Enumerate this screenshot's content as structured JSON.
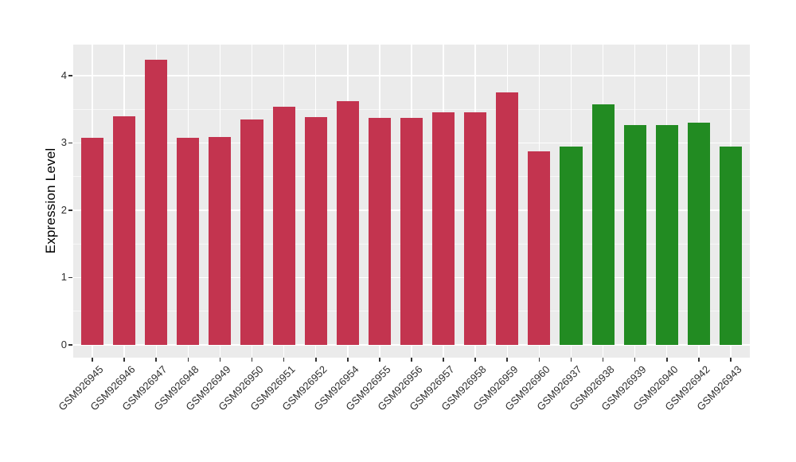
{
  "chart_data": {
    "type": "bar",
    "title": "",
    "xlabel": "",
    "ylabel": "Expression Level",
    "ylim": [
      -0.19,
      4.46
    ],
    "yticks": [
      0,
      1,
      2,
      3,
      4
    ],
    "yminor": [
      0.5,
      1.5,
      2.5,
      3.5
    ],
    "grid": "white major+minor horizontal lines and white vertical lines at each category, on gray panel",
    "legend_position": "none",
    "panel_color": "#EBEBEB",
    "tick_color": "#333333",
    "axis_text_color": "#2e2e2e",
    "groups": {
      "group1": "#C3344F",
      "group2": "#228B22"
    },
    "bars": [
      {
        "label": "GSM926945",
        "value": 3.07,
        "group": "group1"
      },
      {
        "label": "GSM926946",
        "value": 3.4,
        "group": "group1"
      },
      {
        "label": "GSM926947",
        "value": 4.23,
        "group": "group1"
      },
      {
        "label": "GSM926948",
        "value": 3.07,
        "group": "group1"
      },
      {
        "label": "GSM926949",
        "value": 3.09,
        "group": "group1"
      },
      {
        "label": "GSM926950",
        "value": 3.35,
        "group": "group1"
      },
      {
        "label": "GSM926951",
        "value": 3.54,
        "group": "group1"
      },
      {
        "label": "GSM926952",
        "value": 3.38,
        "group": "group1"
      },
      {
        "label": "GSM926954",
        "value": 3.62,
        "group": "group1"
      },
      {
        "label": "GSM926955",
        "value": 3.37,
        "group": "group1"
      },
      {
        "label": "GSM926956",
        "value": 3.37,
        "group": "group1"
      },
      {
        "label": "GSM926957",
        "value": 3.45,
        "group": "group1"
      },
      {
        "label": "GSM926958",
        "value": 3.45,
        "group": "group1"
      },
      {
        "label": "GSM926959",
        "value": 3.75,
        "group": "group1"
      },
      {
        "label": "GSM926960",
        "value": 2.88,
        "group": "group1"
      },
      {
        "label": "GSM926937",
        "value": 2.95,
        "group": "group2"
      },
      {
        "label": "GSM926938",
        "value": 3.57,
        "group": "group2"
      },
      {
        "label": "GSM926939",
        "value": 3.26,
        "group": "group2"
      },
      {
        "label": "GSM926940",
        "value": 3.26,
        "group": "group2"
      },
      {
        "label": "GSM926942",
        "value": 3.3,
        "group": "group2"
      },
      {
        "label": "GSM926943",
        "value": 2.94,
        "group": "group2"
      }
    ]
  }
}
